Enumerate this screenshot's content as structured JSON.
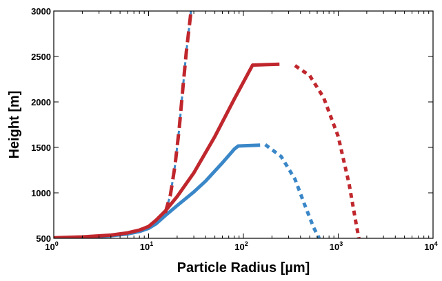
{
  "chart_data": {
    "type": "line",
    "title": "",
    "xlabel": "Particle Radius [µm]",
    "ylabel": "Height [m]",
    "xscale": "log",
    "xlim": [
      1,
      10000
    ],
    "ylim": [
      500,
      3000
    ],
    "grid": false,
    "x_ticks": [
      {
        "base": "10",
        "exp": "0",
        "value": 1
      },
      {
        "base": "10",
        "exp": "1",
        "value": 10
      },
      {
        "base": "10",
        "exp": "2",
        "value": 100
      },
      {
        "base": "10",
        "exp": "3",
        "value": 1000
      },
      {
        "base": "10",
        "exp": "4",
        "value": 10000
      }
    ],
    "y_ticks": [
      "500",
      "1000",
      "1500",
      "2000",
      "2500",
      "3000"
    ],
    "series": [
      {
        "color": "#3a87c8",
        "style": "solid",
        "points": [
          [
            1,
            500
          ],
          [
            2,
            508
          ],
          [
            4,
            528
          ],
          [
            6,
            548
          ],
          [
            8,
            575
          ],
          [
            10,
            610
          ],
          [
            12,
            660
          ],
          [
            15,
            750
          ],
          [
            20,
            860
          ],
          [
            30,
            1010
          ],
          [
            40,
            1130
          ],
          [
            50,
            1240
          ],
          [
            60,
            1330
          ],
          [
            70,
            1410
          ],
          [
            80,
            1480
          ],
          [
            88,
            1515
          ],
          [
            150,
            1525
          ]
        ]
      },
      {
        "color": "#3a87c8",
        "style": "dotted",
        "points": [
          [
            170,
            1530
          ],
          [
            250,
            1400
          ],
          [
            350,
            1150
          ],
          [
            450,
            850
          ],
          [
            550,
            620
          ],
          [
            630,
            500
          ]
        ]
      },
      {
        "color": "#c0272d",
        "style": "solid",
        "points": [
          [
            1,
            505
          ],
          [
            2,
            515
          ],
          [
            4,
            535
          ],
          [
            6,
            560
          ],
          [
            8,
            590
          ],
          [
            10,
            630
          ],
          [
            12,
            700
          ],
          [
            15,
            800
          ],
          [
            20,
            960
          ],
          [
            30,
            1220
          ],
          [
            50,
            1620
          ],
          [
            80,
            2030
          ],
          [
            125,
            2405
          ],
          [
            240,
            2415
          ]
        ]
      },
      {
        "color": "#c0272d",
        "style": "dotted",
        "points": [
          [
            350,
            2400
          ],
          [
            500,
            2290
          ],
          [
            700,
            2050
          ],
          [
            1000,
            1620
          ],
          [
            1300,
            1100
          ],
          [
            1550,
            650
          ],
          [
            1650,
            500
          ]
        ]
      },
      {
        "color": "#c0272d",
        "style": "dashed",
        "points": [
          [
            15,
            780
          ],
          [
            17,
            980
          ],
          [
            19,
            1300
          ],
          [
            21,
            1700
          ],
          [
            23,
            2150
          ],
          [
            25,
            2550
          ],
          [
            27,
            2850
          ],
          [
            28,
            3000
          ]
        ]
      },
      {
        "color": "#3a87c8",
        "style": "dashed-overlay",
        "points": [
          [
            15,
            780
          ],
          [
            17,
            980
          ],
          [
            19,
            1300
          ],
          [
            21,
            1700
          ],
          [
            23,
            2150
          ],
          [
            25,
            2550
          ],
          [
            27,
            2850
          ],
          [
            28,
            3000
          ]
        ]
      }
    ]
  }
}
